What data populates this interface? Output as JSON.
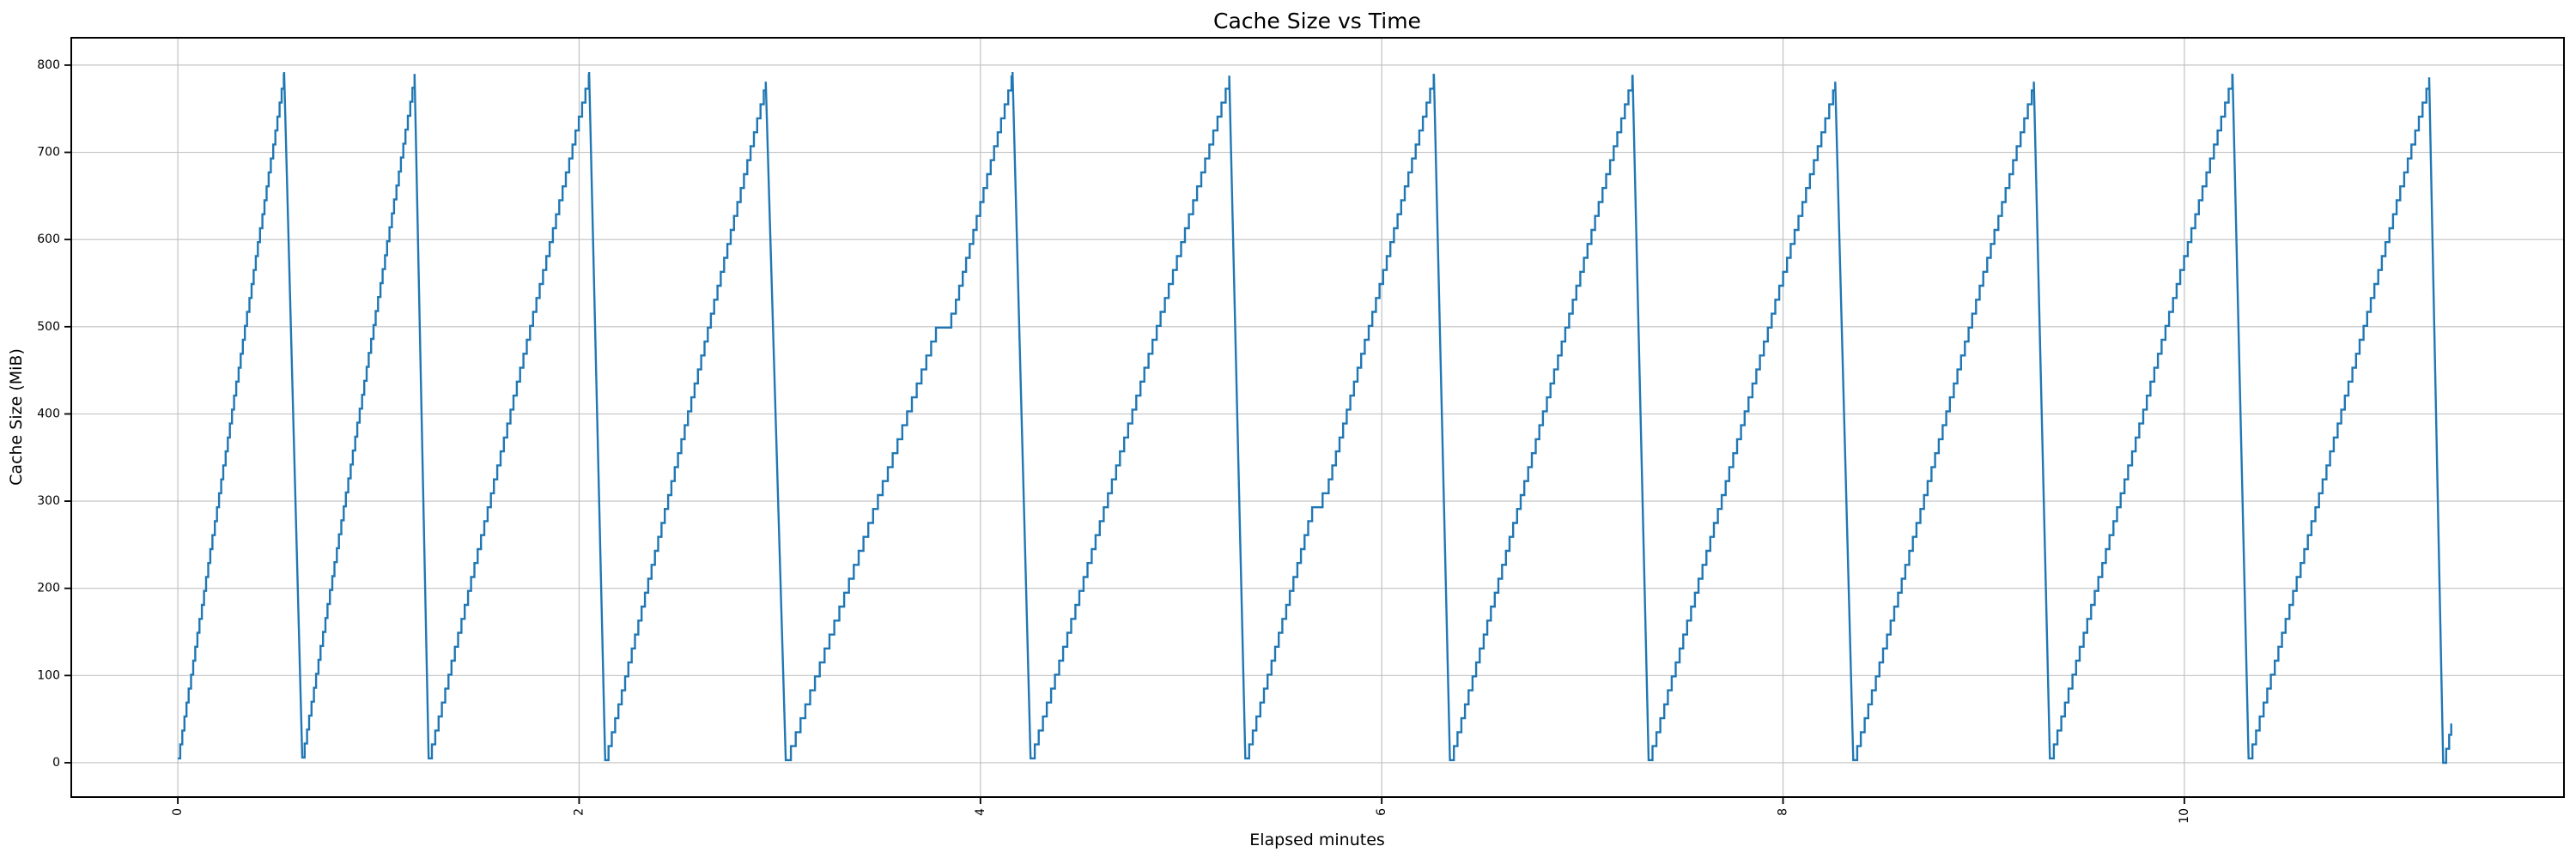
{
  "chart_data": {
    "type": "line",
    "title": "Cache Size vs Time",
    "xlabel": "Elapsed minutes",
    "ylabel": "Cache Size (MiB)",
    "xticks": [
      0,
      2,
      4,
      6,
      8,
      10
    ],
    "yticks": [
      0,
      100,
      200,
      300,
      400,
      500,
      600,
      700,
      800
    ],
    "xlim": [
      -0.531,
      11.892
    ],
    "ylim": [
      -39.4,
      831.4
    ],
    "grid": true,
    "legend": null,
    "line_color": "#1f77b4",
    "grid_color": "#c2c2c2",
    "spine_color": "#000000",
    "step_mib": 16,
    "pattern": "stepped sawtooth: staircase ramp up, near-vertical flush down",
    "cycles": [
      {
        "x": [
          0.0,
          0.53
        ],
        "y": [
          5,
          792
        ]
      },
      {
        "x": [
          0.62,
          1.18
        ],
        "y": [
          6,
          790
        ]
      },
      {
        "x": [
          1.25,
          2.05
        ],
        "y": [
          5,
          792
        ]
      },
      {
        "x": [
          2.13,
          2.93
        ],
        "y": [
          3,
          781
        ]
      },
      {
        "x": [
          3.03,
          3.78,
          3.86,
          4.16
        ],
        "y": [
          3,
          500,
          516,
          792
        ]
      },
      {
        "x": [
          4.25,
          5.24
        ],
        "y": [
          5,
          788
        ]
      },
      {
        "x": [
          5.32,
          5.66,
          5.72,
          6.26
        ],
        "y": [
          5,
          300,
          312,
          790
        ]
      },
      {
        "x": [
          6.34,
          7.25
        ],
        "y": [
          3,
          789
        ]
      },
      {
        "x": [
          7.33,
          8.26
        ],
        "y": [
          3,
          781
        ]
      },
      {
        "x": [
          8.35,
          9.25
        ],
        "y": [
          3,
          781
        ]
      },
      {
        "x": [
          9.33,
          10.24
        ],
        "y": [
          5,
          790
        ]
      },
      {
        "x": [
          10.32,
          11.22
        ],
        "y": [
          5,
          786
        ]
      },
      {
        "x": [
          11.29,
          11.31,
          11.33
        ],
        "y": [
          0,
          22,
          45
        ]
      }
    ]
  }
}
